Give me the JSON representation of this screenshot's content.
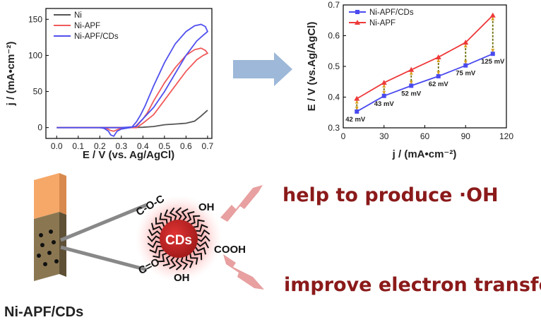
{
  "chart_data": [
    {
      "type": "line",
      "title": "",
      "xlabel": "E / V (vs. Ag/AgCl)",
      "ylabel": "j / (mA•cm⁻²)",
      "xlim": [
        -0.05,
        0.72
      ],
      "ylim": [
        -15,
        165
      ],
      "xticks": [
        "0.0",
        "0.1",
        "0.2",
        "0.3",
        "0.4",
        "0.5",
        "0.6",
        "0.7"
      ],
      "yticks": [
        "0",
        "50",
        "100",
        "150"
      ],
      "legend_position": "top-left",
      "grid": false,
      "series": [
        {
          "name": "Ni",
          "color": "#555555",
          "points": [
            [
              0.0,
              0
            ],
            [
              0.3,
              0
            ],
            [
              0.4,
              0.5
            ],
            [
              0.45,
              1.5
            ],
            [
              0.5,
              4
            ],
            [
              0.55,
              5
            ],
            [
              0.6,
              6
            ],
            [
              0.64,
              9
            ],
            [
              0.67,
              16
            ],
            [
              0.7,
              24
            ]
          ]
        },
        {
          "name": "Ni-APF",
          "color": "#f05a5a",
          "points": [
            [
              0.0,
              0
            ],
            [
              0.25,
              0
            ],
            [
              0.3,
              0
            ],
            [
              0.36,
              0
            ],
            [
              0.38,
              6
            ],
            [
              0.4,
              12
            ],
            [
              0.42,
              20
            ],
            [
              0.45,
              37
            ],
            [
              0.5,
              62
            ],
            [
              0.55,
              83
            ],
            [
              0.6,
              100
            ],
            [
              0.64,
              108
            ],
            [
              0.67,
              110
            ],
            [
              0.69,
              107
            ],
            [
              0.7,
              103
            ],
            [
              0.68,
              100
            ],
            [
              0.65,
              94
            ],
            [
              0.6,
              78
            ],
            [
              0.55,
              58
            ],
            [
              0.5,
              38
            ],
            [
              0.45,
              18
            ],
            [
              0.4,
              6
            ],
            [
              0.37,
              0
            ],
            [
              0.35,
              0
            ],
            [
              0.32,
              0
            ],
            [
              0.3,
              -1
            ],
            [
              0.28,
              -3
            ],
            [
              0.265,
              -5
            ],
            [
              0.25,
              -4
            ],
            [
              0.23,
              -1
            ],
            [
              0.2,
              0
            ],
            [
              0.0,
              0
            ]
          ]
        },
        {
          "name": "Ni-APF/CDs",
          "color": "#5050ee",
          "points": [
            [
              0.0,
              0
            ],
            [
              0.25,
              0
            ],
            [
              0.3,
              0
            ],
            [
              0.35,
              1
            ],
            [
              0.37,
              8
            ],
            [
              0.39,
              18
            ],
            [
              0.41,
              30
            ],
            [
              0.45,
              58
            ],
            [
              0.5,
              90
            ],
            [
              0.55,
              116
            ],
            [
              0.6,
              133
            ],
            [
              0.64,
              141
            ],
            [
              0.67,
              143
            ],
            [
              0.69,
              140
            ],
            [
              0.7,
              133
            ],
            [
              0.68,
              128
            ],
            [
              0.65,
              120
            ],
            [
              0.6,
              100
            ],
            [
              0.55,
              75
            ],
            [
              0.5,
              50
            ],
            [
              0.45,
              28
            ],
            [
              0.4,
              12
            ],
            [
              0.37,
              2
            ],
            [
              0.34,
              0
            ],
            [
              0.3,
              -2
            ],
            [
              0.28,
              -5
            ],
            [
              0.265,
              -12
            ],
            [
              0.25,
              -10
            ],
            [
              0.24,
              -5
            ],
            [
              0.22,
              -1
            ],
            [
              0.2,
              0
            ],
            [
              0.0,
              0
            ]
          ]
        }
      ]
    },
    {
      "type": "line",
      "title": "",
      "xlabel": "j / (mA•cm⁻²)",
      "ylabel": "E / V (vs.Ag/AgCl)",
      "xlim": [
        0,
        120
      ],
      "ylim": [
        0.3,
        0.7
      ],
      "xticks": [
        "0",
        "30",
        "60",
        "90",
        "120"
      ],
      "yticks": [
        "0.3",
        "0.4",
        "0.5",
        "0.6",
        "0.7"
      ],
      "legend_position": "top-left",
      "grid": false,
      "x": [
        10,
        30,
        50,
        70,
        90,
        110
      ],
      "series": [
        {
          "name": "Ni-APF/CDs",
          "color": "#4a4aee",
          "marker": "square",
          "values": [
            0.353,
            0.404,
            0.437,
            0.468,
            0.503,
            0.541
          ]
        },
        {
          "name": "Ni-APF",
          "color": "#ee3a3a",
          "marker": "triangle",
          "values": [
            0.395,
            0.447,
            0.489,
            0.53,
            0.578,
            0.666
          ]
        }
      ],
      "annotations": [
        "42 mV",
        "43 mV",
        "52 mV",
        "62 mV",
        "75 mV",
        "125 mV"
      ],
      "difference_line_color": "#6b6b00"
    }
  ],
  "illustration": {
    "electrode_label": "Ni-APF/CDs",
    "particle_label": "CDs",
    "functional_groups": [
      "C-O-C",
      "OH",
      "COOH",
      "C=O",
      "OH"
    ],
    "benefits": [
      "help to produce ·OH",
      "improve electron transfer"
    ],
    "arrow_color": "#9db8d8",
    "benefit_color": "#8b1a1a",
    "bolt_color": "#e8a0a0"
  }
}
